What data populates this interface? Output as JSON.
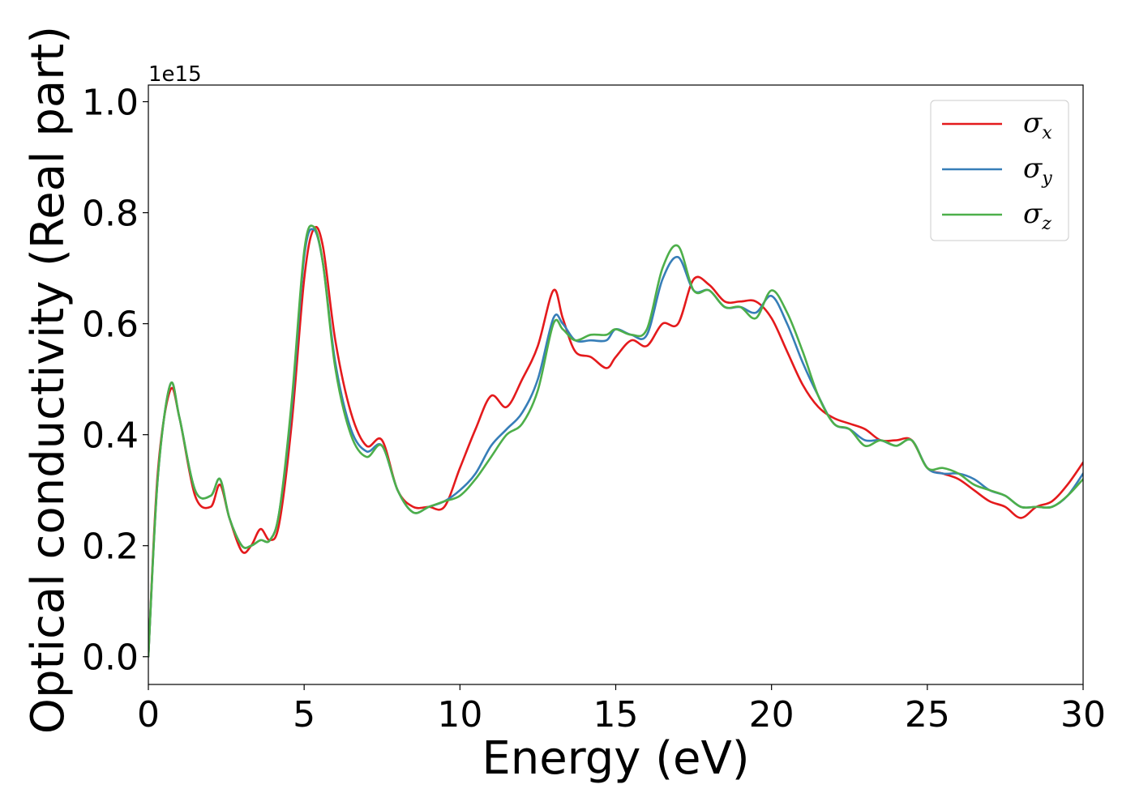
{
  "chart_data": {
    "type": "line",
    "xlabel": "Energy (eV)",
    "ylabel": "Optical conductivity (Real part)",
    "y_offset_label": "1e15",
    "xlim": [
      0,
      30
    ],
    "ylim": [
      -0.05,
      1.03
    ],
    "x_ticks": [
      0,
      5,
      10,
      15,
      20,
      25,
      30
    ],
    "x_tick_labels": [
      "0",
      "5",
      "10",
      "15",
      "20",
      "25",
      "30"
    ],
    "y_ticks": [
      0.0,
      0.2,
      0.4,
      0.6,
      0.8,
      1.0
    ],
    "y_tick_labels": [
      "0.0",
      "0.2",
      "0.4",
      "0.6",
      "0.8",
      "1.0"
    ],
    "grid": false,
    "legend_position": "top-right",
    "series": [
      {
        "name": "σx",
        "color": "#e41a1c",
        "x": [
          0,
          0.3,
          0.7,
          1.0,
          1.5,
          2.0,
          2.3,
          2.6,
          3.0,
          3.3,
          3.6,
          3.9,
          4.2,
          4.6,
          5.0,
          5.3,
          5.6,
          6.0,
          6.5,
          7.0,
          7.5,
          8.0,
          8.5,
          9.0,
          9.5,
          10.0,
          10.5,
          11.0,
          11.5,
          12.0,
          12.5,
          13.0,
          13.3,
          13.7,
          14.2,
          14.7,
          15.0,
          15.5,
          16.0,
          16.5,
          17.0,
          17.5,
          18.0,
          18.5,
          19.0,
          19.5,
          20.0,
          20.5,
          21.0,
          21.5,
          22.0,
          22.5,
          23.0,
          23.5,
          24.0,
          24.5,
          25.0,
          25.5,
          26.0,
          26.5,
          27.0,
          27.5,
          28.0,
          28.5,
          29.0,
          29.5,
          30.0
        ],
        "y": [
          0.0,
          0.33,
          0.48,
          0.43,
          0.29,
          0.27,
          0.31,
          0.25,
          0.19,
          0.2,
          0.23,
          0.21,
          0.24,
          0.42,
          0.68,
          0.77,
          0.74,
          0.57,
          0.44,
          0.38,
          0.39,
          0.3,
          0.27,
          0.27,
          0.27,
          0.34,
          0.41,
          0.47,
          0.45,
          0.5,
          0.56,
          0.66,
          0.61,
          0.55,
          0.54,
          0.52,
          0.54,
          0.57,
          0.56,
          0.6,
          0.6,
          0.68,
          0.67,
          0.64,
          0.64,
          0.64,
          0.61,
          0.55,
          0.49,
          0.45,
          0.43,
          0.42,
          0.41,
          0.39,
          0.39,
          0.39,
          0.34,
          0.33,
          0.32,
          0.3,
          0.28,
          0.27,
          0.25,
          0.27,
          0.28,
          0.31,
          0.35
        ]
      },
      {
        "name": "σy",
        "color": "#377eb8",
        "x": [
          0,
          0.3,
          0.7,
          1.0,
          1.5,
          2.0,
          2.3,
          2.6,
          3.0,
          3.3,
          3.6,
          3.9,
          4.2,
          4.6,
          5.0,
          5.3,
          5.6,
          6.0,
          6.5,
          7.0,
          7.5,
          8.0,
          8.5,
          9.0,
          9.5,
          10.0,
          10.5,
          11.0,
          11.5,
          12.0,
          12.5,
          13.0,
          13.3,
          13.7,
          14.2,
          14.7,
          15.0,
          15.5,
          16.0,
          16.5,
          17.0,
          17.5,
          18.0,
          18.5,
          19.0,
          19.5,
          20.0,
          20.5,
          21.0,
          21.5,
          22.0,
          22.5,
          23.0,
          23.5,
          24.0,
          24.5,
          25.0,
          25.5,
          26.0,
          26.5,
          27.0,
          27.5,
          28.0,
          28.5,
          29.0,
          29.5,
          30.0
        ],
        "y": [
          0.0,
          0.32,
          0.49,
          0.43,
          0.3,
          0.29,
          0.32,
          0.25,
          0.2,
          0.2,
          0.21,
          0.21,
          0.26,
          0.45,
          0.72,
          0.77,
          0.71,
          0.53,
          0.41,
          0.37,
          0.38,
          0.3,
          0.26,
          0.27,
          0.28,
          0.3,
          0.33,
          0.38,
          0.41,
          0.44,
          0.5,
          0.61,
          0.6,
          0.57,
          0.57,
          0.57,
          0.59,
          0.58,
          0.58,
          0.68,
          0.72,
          0.66,
          0.66,
          0.63,
          0.63,
          0.62,
          0.65,
          0.6,
          0.53,
          0.47,
          0.42,
          0.41,
          0.39,
          0.39,
          0.38,
          0.39,
          0.34,
          0.33,
          0.33,
          0.32,
          0.3,
          0.29,
          0.27,
          0.27,
          0.27,
          0.29,
          0.33
        ]
      },
      {
        "name": "σz",
        "color": "#4daf4a",
        "x": [
          0,
          0.3,
          0.7,
          1.0,
          1.5,
          2.0,
          2.3,
          2.6,
          3.0,
          3.3,
          3.6,
          3.9,
          4.2,
          4.6,
          5.0,
          5.3,
          5.6,
          6.0,
          6.5,
          7.0,
          7.5,
          8.0,
          8.5,
          9.0,
          9.5,
          10.0,
          10.5,
          11.0,
          11.5,
          12.0,
          12.5,
          13.0,
          13.3,
          13.7,
          14.2,
          14.7,
          15.0,
          15.5,
          16.0,
          16.5,
          17.0,
          17.5,
          18.0,
          18.5,
          19.0,
          19.5,
          20.0,
          20.5,
          21.0,
          21.5,
          22.0,
          22.5,
          23.0,
          23.5,
          24.0,
          24.5,
          25.0,
          25.5,
          26.0,
          26.5,
          27.0,
          27.5,
          28.0,
          28.5,
          29.0,
          29.5,
          30.0
        ],
        "y": [
          0.0,
          0.32,
          0.49,
          0.43,
          0.3,
          0.29,
          0.32,
          0.25,
          0.2,
          0.2,
          0.21,
          0.21,
          0.26,
          0.46,
          0.73,
          0.775,
          0.71,
          0.52,
          0.4,
          0.36,
          0.38,
          0.3,
          0.26,
          0.27,
          0.28,
          0.29,
          0.32,
          0.36,
          0.4,
          0.42,
          0.48,
          0.6,
          0.59,
          0.57,
          0.58,
          0.58,
          0.59,
          0.58,
          0.59,
          0.7,
          0.74,
          0.66,
          0.66,
          0.63,
          0.63,
          0.61,
          0.66,
          0.62,
          0.55,
          0.47,
          0.42,
          0.41,
          0.38,
          0.39,
          0.38,
          0.39,
          0.34,
          0.34,
          0.33,
          0.31,
          0.3,
          0.29,
          0.27,
          0.27,
          0.27,
          0.29,
          0.32
        ]
      }
    ],
    "legend_entries": [
      {
        "symbol": "σ",
        "subscript": "x"
      },
      {
        "symbol": "σ",
        "subscript": "y"
      },
      {
        "symbol": "σ",
        "subscript": "z"
      }
    ]
  }
}
